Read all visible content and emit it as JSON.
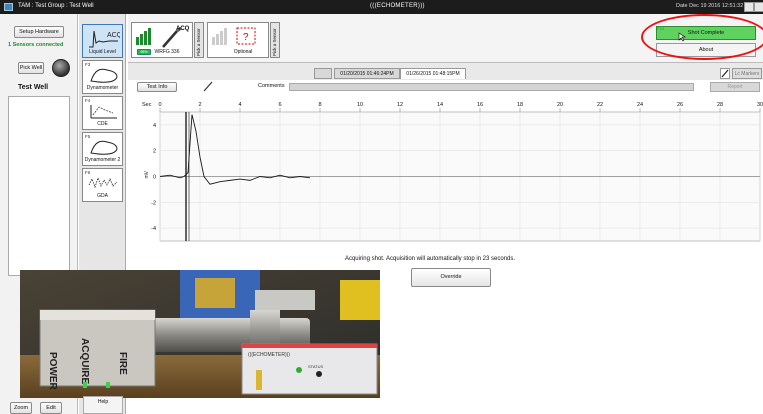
{
  "window": {
    "title": "TAM : Test Group : Test Well",
    "app_name": "(((ECHOMETER)))",
    "date_text": "Date Dec 19 2016 12:51:32"
  },
  "left_panel": {
    "setup_hardware_label": "Setup Hardware",
    "sensors_connected": "1 Sensors connected",
    "pick_well_label": "Pick Well",
    "well_name": "Test Well",
    "zoom_label": "Zoom",
    "edit_label": "Edit"
  },
  "tools": [
    {
      "key": "",
      "label": "Liquid Level",
      "icon": "acq-trace-icon",
      "selected": true
    },
    {
      "key": "F3",
      "label": "Dynamometer",
      "icon": "dyno-card-icon"
    },
    {
      "key": "F4",
      "label": "CDE",
      "icon": "cde-icon"
    },
    {
      "key": "F5",
      "label": "Dynamometer 2",
      "icon": "dyno-card-icon"
    },
    {
      "key": "F6",
      "label": "GDA",
      "icon": "gda-wave-icon"
    }
  ],
  "help_label": "Help",
  "devices": {
    "device1_name": "WRFG 336",
    "device1_acq": "ACQ",
    "device1_battery": "99%",
    "device2_name": "Optional",
    "pick_sensor_label": "Pick a Sensor"
  },
  "top_right": {
    "shot_key": "F10",
    "shot_complete_label": "Shot Complete",
    "about_label": "About"
  },
  "tabs": {
    "items": [
      "01/20/2015 01:46:24PM",
      "01/26/2015 01:48:15PM"
    ],
    "active_index": 1,
    "clear_label": "Lc Markers"
  },
  "info_row": {
    "test_info_label": "Test Info",
    "comments_label": "Comments",
    "comments_value": "",
    "report_label": "Report"
  },
  "status": {
    "message": "Acquiring shot.  Acquisition will automatically stop in 23 seconds.",
    "override_label": "Override"
  },
  "photo": {
    "device_labels": [
      "POWER",
      "ACQUIRE",
      "FIRE"
    ],
    "brand": "(((ECHOMETER)))",
    "status_label": "STATUS"
  },
  "chart_data": {
    "type": "line",
    "title": "",
    "xlabel": "Sec",
    "ylabel": "mV",
    "xlim": [
      0,
      30
    ],
    "ylim": [
      -5,
      5
    ],
    "x_ticks": [
      0,
      2,
      4,
      6,
      8,
      10,
      12,
      14,
      16,
      18,
      20,
      22,
      24,
      26,
      28,
      30
    ],
    "y_ticks": [
      4,
      2,
      0,
      -2,
      -4
    ],
    "y_tick_labels": [
      "4",
      "2",
      "0",
      "-2",
      "-4"
    ],
    "grid": true,
    "marker_x": 1.3,
    "series": [
      {
        "x": [
          0.0,
          0.5,
          1.0,
          1.2,
          1.4,
          1.6,
          1.8,
          2.0,
          2.2,
          2.5,
          3.0,
          3.5,
          4.0,
          4.5,
          5.0,
          5.5,
          6.0,
          6.5,
          7.0,
          7.5
        ],
        "y": [
          0.0,
          0.1,
          -0.1,
          0.0,
          0.3,
          4.8,
          3.5,
          1.5,
          0.0,
          -0.6,
          -0.4,
          -0.3,
          -0.2,
          -0.3,
          0.0,
          -0.1,
          0.1,
          -0.1,
          0.0,
          -0.1
        ]
      }
    ]
  }
}
